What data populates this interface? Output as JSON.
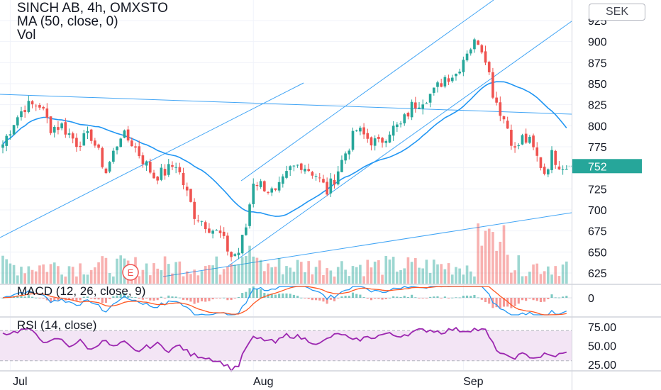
{
  "header": {
    "symbol_line": "SINCH AB, 4h, OMXSTO",
    "ma_line": "MA (50, close, 0)",
    "vol_line": "Vol",
    "currency": "SEK"
  },
  "colors": {
    "up": "#26a69a",
    "down": "#ef5350",
    "ma": "#2196f3",
    "trendline": "#42a5f5",
    "rsi": "#9c27b0",
    "rsi_band": "#f3e5f5",
    "macd": "#2196f3",
    "signal": "#ff5722",
    "price_badge": "#26a69a"
  },
  "chart_data": [
    {
      "type": "candlestick",
      "title": "SINCH AB, 4h, OMXSTO",
      "y_ticks": [
        925,
        900,
        875,
        850,
        825,
        800,
        775,
        750,
        725,
        700,
        675,
        650,
        625
      ],
      "y_tick_labels": [
        "925",
        "900",
        "875",
        "850",
        "825",
        "800",
        "775",
        "",
        "725",
        "700",
        "675",
        "650",
        "625"
      ],
      "ylim": [
        612,
        937
      ],
      "x_labels": [
        "Jul",
        "Aug",
        "Sep"
      ],
      "x_label_positions": [
        2,
        68,
        125
      ],
      "last_price": "752",
      "earnings_marker": "E",
      "close_anchors": [
        [
          0,
          778
        ],
        [
          3,
          805
        ],
        [
          6,
          823
        ],
        [
          10,
          825
        ],
        [
          13,
          798
        ],
        [
          16,
          800
        ],
        [
          20,
          780
        ],
        [
          24,
          788
        ],
        [
          28,
          745
        ],
        [
          32,
          790
        ],
        [
          35,
          780
        ],
        [
          38,
          760
        ],
        [
          41,
          740
        ],
        [
          44,
          745
        ],
        [
          47,
          755
        ],
        [
          52,
          695
        ],
        [
          56,
          680
        ],
        [
          59,
          670
        ],
        [
          62,
          645
        ],
        [
          64,
          650
        ],
        [
          66,
          680
        ],
        [
          68,
          735
        ],
        [
          71,
          728
        ],
        [
          74,
          718
        ],
        [
          78,
          748
        ],
        [
          81,
          755
        ],
        [
          85,
          742
        ],
        [
          88,
          722
        ],
        [
          90,
          738
        ],
        [
          93,
          768
        ],
        [
          96,
          795
        ],
        [
          99,
          785
        ],
        [
          102,
          778
        ],
        [
          105,
          795
        ],
        [
          108,
          800
        ],
        [
          111,
          823
        ],
        [
          114,
          832
        ],
        [
          117,
          840
        ],
        [
          120,
          858
        ],
        [
          123,
          862
        ],
        [
          126,
          890
        ],
        [
          129,
          902
        ],
        [
          131,
          883
        ],
        [
          133,
          840
        ],
        [
          135,
          818
        ],
        [
          137,
          798
        ],
        [
          139,
          770
        ],
        [
          141,
          785
        ],
        [
          143,
          780
        ],
        [
          145,
          762
        ],
        [
          147,
          745
        ],
        [
          149,
          765
        ],
        [
          151,
          755
        ],
        [
          153,
          752
        ]
      ],
      "volume_ylim": [
        0,
        100
      ]
    },
    {
      "type": "line",
      "name": "MACD (12, 26, close, 9)",
      "zero_label": "0"
    },
    {
      "type": "line",
      "name": "RSI (14, close)",
      "y_ticks": [
        75.0,
        50.0,
        25.0
      ],
      "y_tick_labels": [
        "75.00",
        "50.00",
        "25.00"
      ],
      "band": [
        30,
        70
      ],
      "ylim": [
        10,
        80
      ],
      "anchors": [
        [
          0,
          66
        ],
        [
          3,
          68
        ],
        [
          6,
          72
        ],
        [
          9,
          66
        ],
        [
          12,
          52
        ],
        [
          15,
          60
        ],
        [
          18,
          50
        ],
        [
          21,
          56
        ],
        [
          24,
          44
        ],
        [
          27,
          58
        ],
        [
          30,
          48
        ],
        [
          33,
          54
        ],
        [
          36,
          42
        ],
        [
          39,
          48
        ],
        [
          42,
          52
        ],
        [
          45,
          44
        ],
        [
          48,
          50
        ],
        [
          51,
          38
        ],
        [
          54,
          36
        ],
        [
          57,
          32
        ],
        [
          60,
          26
        ],
        [
          62,
          19
        ],
        [
          64,
          24
        ],
        [
          66,
          48
        ],
        [
          68,
          60
        ],
        [
          71,
          58
        ],
        [
          74,
          54
        ],
        [
          77,
          64
        ],
        [
          80,
          62
        ],
        [
          83,
          57
        ],
        [
          86,
          52
        ],
        [
          89,
          62
        ],
        [
          92,
          66
        ],
        [
          95,
          56
        ],
        [
          98,
          60
        ],
        [
          101,
          62
        ],
        [
          104,
          66
        ],
        [
          107,
          63
        ],
        [
          110,
          66
        ],
        [
          113,
          70
        ],
        [
          116,
          71
        ],
        [
          119,
          68
        ],
        [
          122,
          72
        ],
        [
          125,
          70
        ],
        [
          128,
          72
        ],
        [
          131,
          70
        ],
        [
          133,
          52
        ],
        [
          135,
          40
        ],
        [
          137,
          34
        ],
        [
          139,
          35
        ],
        [
          141,
          38
        ],
        [
          143,
          36
        ],
        [
          145,
          34
        ],
        [
          147,
          38
        ],
        [
          149,
          36
        ],
        [
          151,
          38
        ],
        [
          153,
          40
        ]
      ]
    }
  ]
}
